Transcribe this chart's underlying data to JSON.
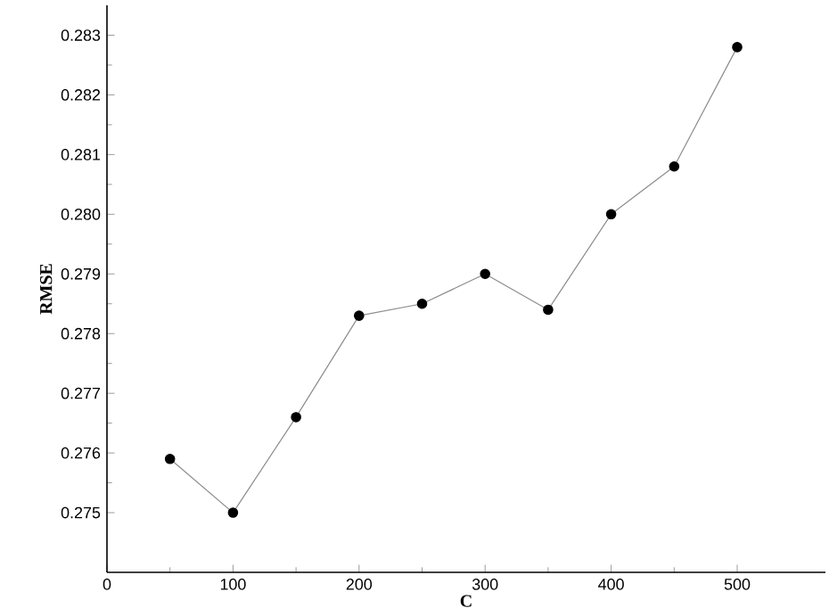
{
  "chart_data": {
    "type": "line",
    "xlabel": "C",
    "ylabel": "RMSE",
    "x": [
      50,
      100,
      150,
      200,
      250,
      300,
      350,
      400,
      450,
      500
    ],
    "values": [
      0.2759,
      0.275,
      0.2766,
      0.2783,
      0.2785,
      0.279,
      0.2784,
      0.28,
      0.2808,
      0.2828
    ],
    "color": "#000000",
    "marker": "circle",
    "xlim": [
      0,
      570
    ],
    "ylim": [
      0.274,
      0.2835
    ],
    "xticks": [
      0,
      100,
      200,
      300,
      400,
      500
    ],
    "yticks": [
      {
        "value": 0.275,
        "label": "0.275"
      },
      {
        "value": 0.276,
        "label": "0.276"
      },
      {
        "value": 0.277,
        "label": "0.277"
      },
      {
        "value": 0.278,
        "label": "0.278"
      },
      {
        "value": 0.279,
        "label": "0.279"
      },
      {
        "value": 0.28,
        "label": "0.280"
      },
      {
        "value": 0.281,
        "label": "0.281"
      },
      {
        "value": 0.282,
        "label": "0.282"
      },
      {
        "value": 0.283,
        "label": "0.283"
      }
    ]
  }
}
